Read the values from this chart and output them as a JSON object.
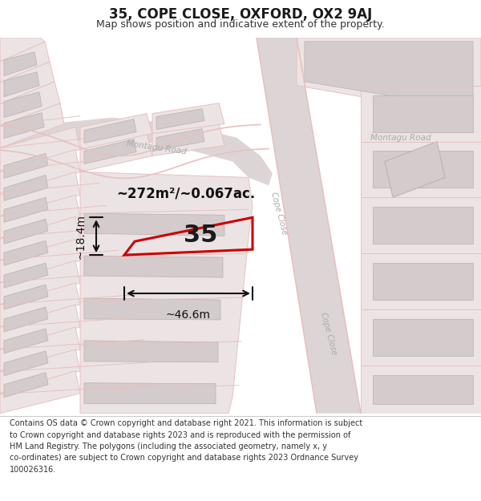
{
  "title": "35, COPE CLOSE, OXFORD, OX2 9AJ",
  "subtitle": "Map shows position and indicative extent of the property.",
  "footer": "Contains OS data © Crown copyright and database right 2021. This information is subject\nto Crown copyright and database rights 2023 and is reproduced with the permission of\nHM Land Registry. The polygons (including the associated geometry, namely x, y\nco-ordinates) are subject to Crown copyright and database rights 2023 Ordnance Survey\n100026316.",
  "bg_color": "#ffffff",
  "map_bg": "#f7efef",
  "road_color": "#e8c0c0",
  "building_fill": "#d4cccc",
  "building_edge": "#b8b0b0",
  "highlight_color": "#cc0000",
  "road_label_color": "#aaaaaa",
  "annotation_color": "#111111",
  "area_label": "~272m²/~0.067ac.",
  "width_label": "~46.6m",
  "height_label": "~18.4m",
  "plot_number": "35",
  "road_label_montagu1": "Montagu Road",
  "road_label_montagu2": "Montagu Road",
  "road_label_cope1": "Cope Close",
  "road_label_cope2": "Cope Close",
  "figsize": [
    6.0,
    6.25
  ],
  "dpi": 100,
  "title_fontsize": 12,
  "subtitle_fontsize": 9,
  "footer_fontsize": 7
}
